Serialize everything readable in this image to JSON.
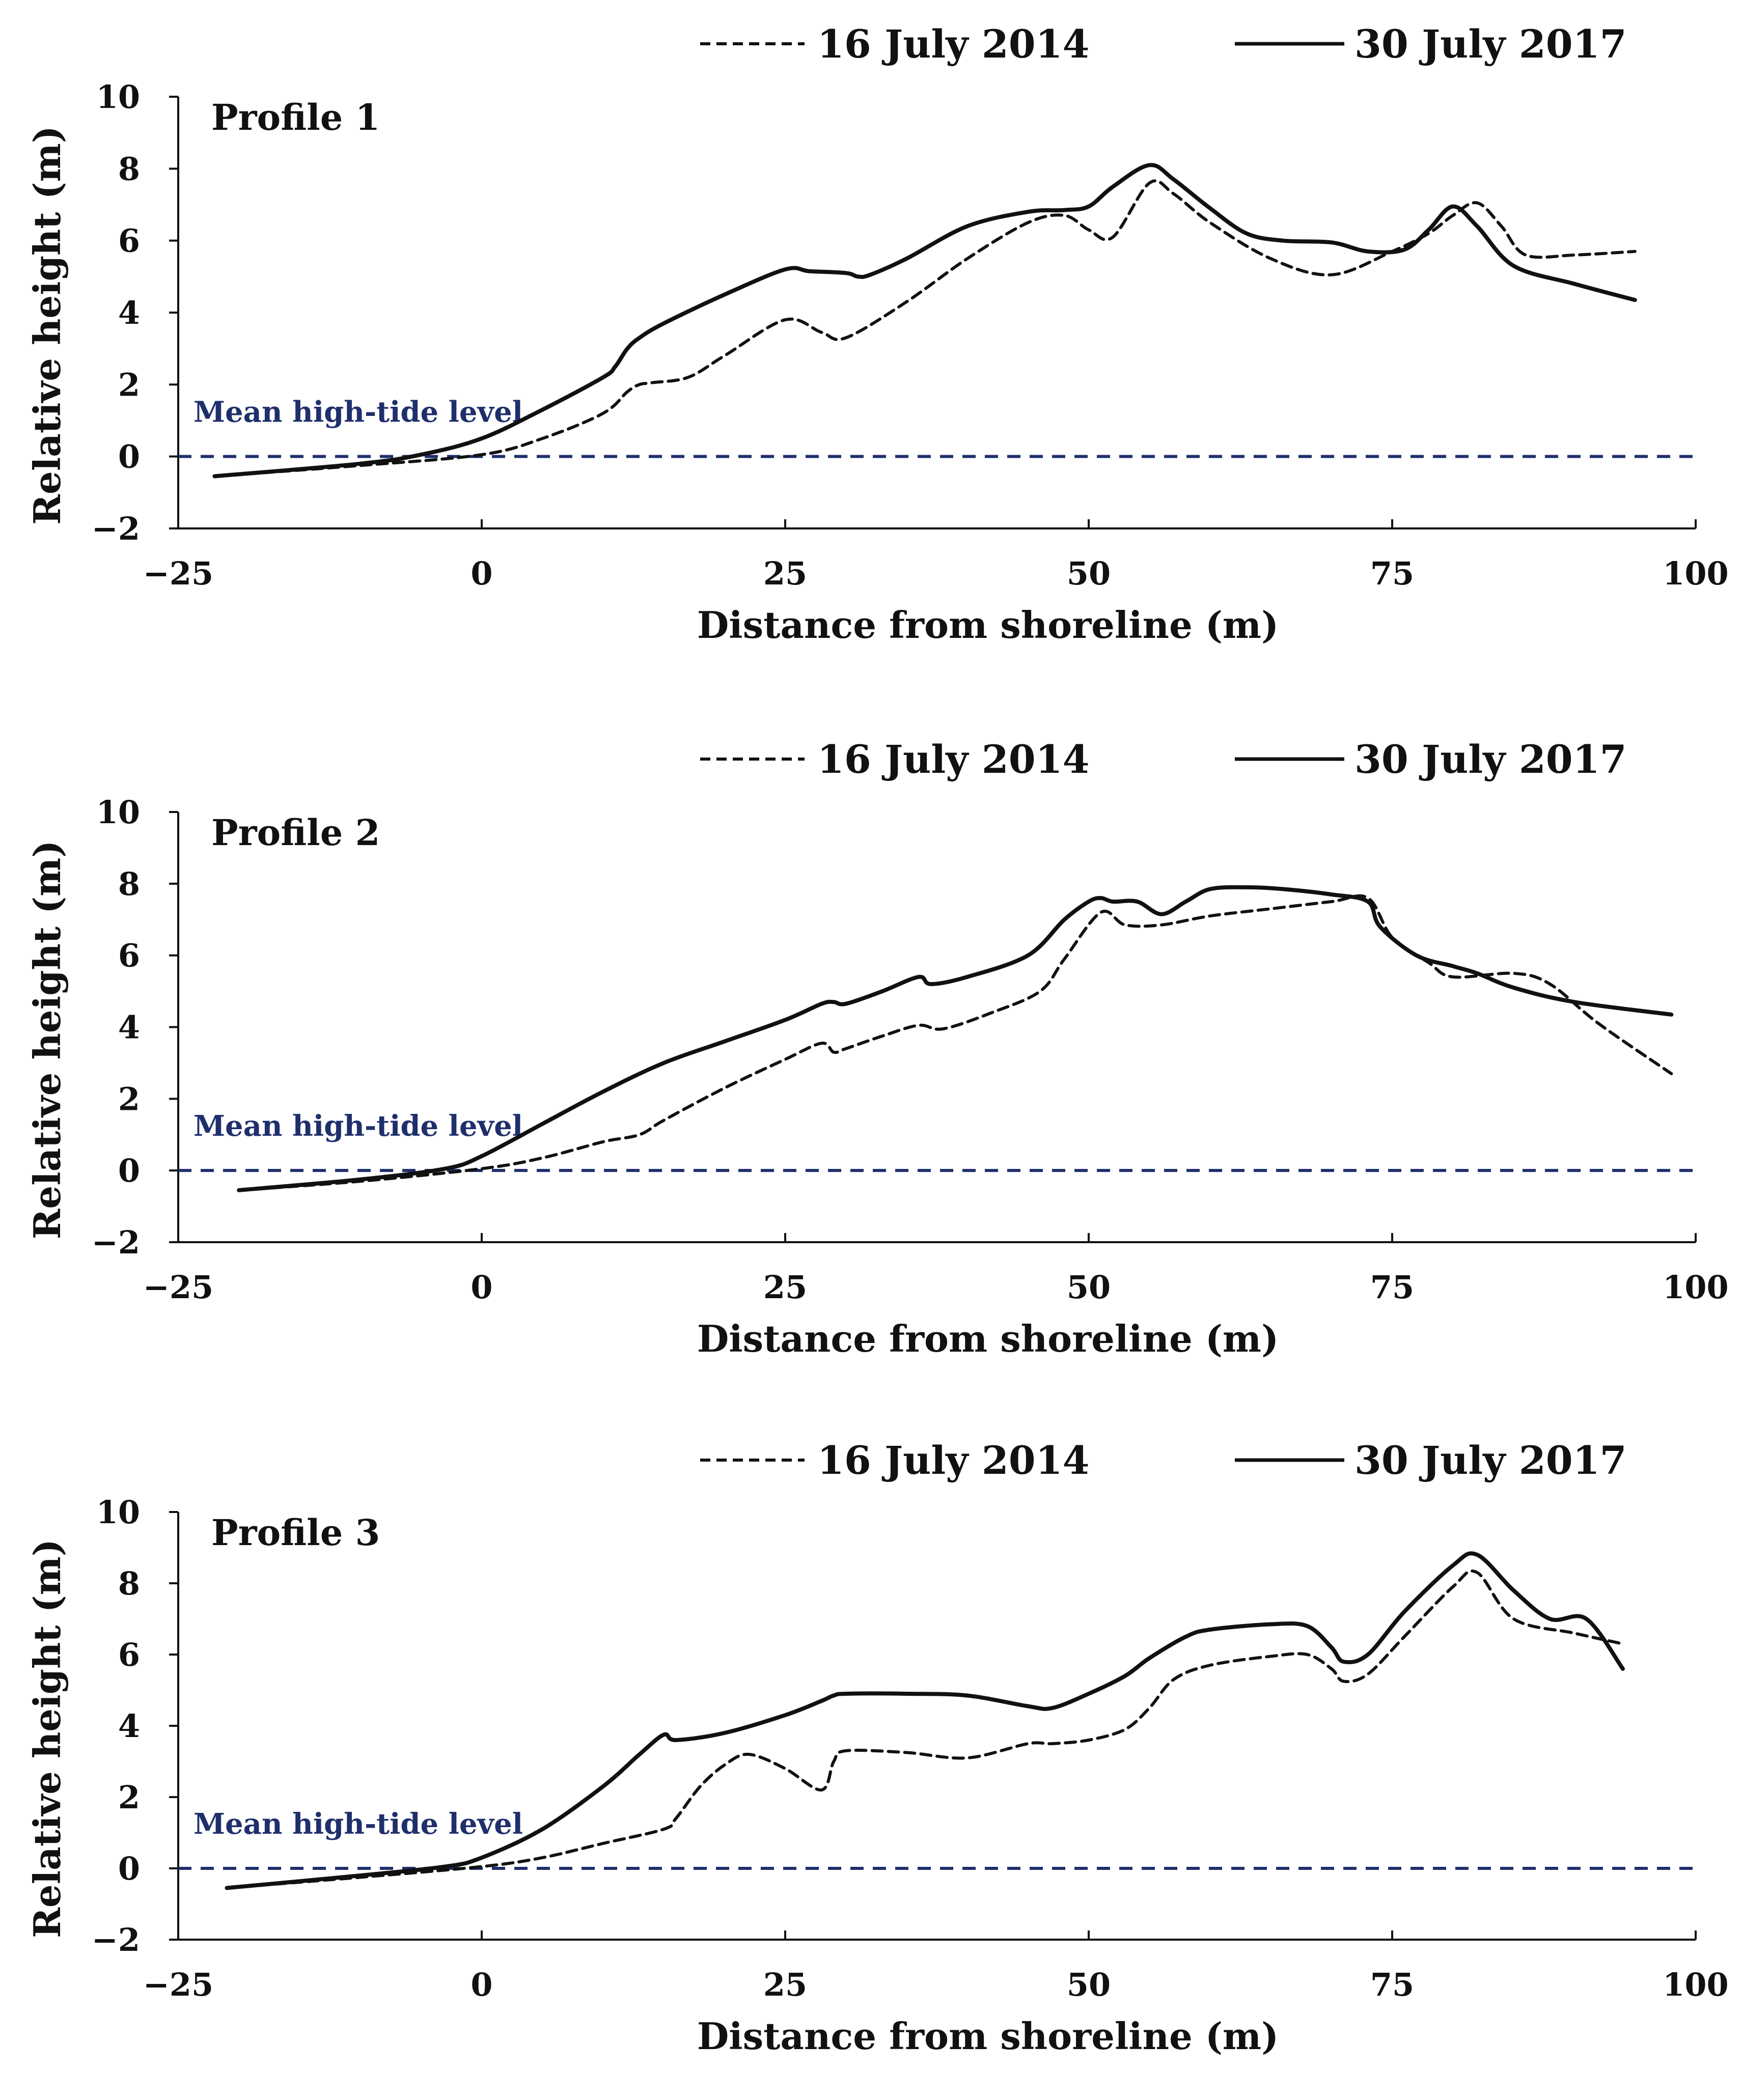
{
  "colors": {
    "series_line": "#111111",
    "tide_line": "#1f2f6b",
    "axis": "#111111",
    "background": "#ffffff"
  },
  "chart_data": [
    {
      "type": "line",
      "panel_label": "Profile 1",
      "xlabel": "Distance from shoreline (m)",
      "ylabel": "Relative height (m)",
      "xlim": [
        -25,
        100
      ],
      "ylim": [
        -2,
        10
      ],
      "xticks": [
        -25,
        0,
        25,
        50,
        75,
        100
      ],
      "yticks": [
        -2,
        0,
        2,
        4,
        6,
        8,
        10
      ],
      "xtick_labels": [
        "−25",
        "0",
        "25",
        "50",
        "75",
        "100"
      ],
      "ytick_labels": [
        "−2",
        "0",
        "2",
        "4",
        "6",
        "8",
        "10"
      ],
      "reference_line": {
        "label": "Mean high-tide level",
        "y": 0
      },
      "series": [
        {
          "name": "16 July 2014",
          "style": "dashed",
          "x": [
            -22,
            -10,
            0,
            5,
            10,
            12,
            13,
            14,
            17,
            20,
            25,
            28,
            30,
            35,
            40,
            45,
            48,
            50,
            52,
            55,
            57,
            60,
            65,
            70,
            75,
            78,
            80,
            82,
            84,
            86,
            90,
            95
          ],
          "y": [
            -0.55,
            -0.25,
            0.05,
            0.5,
            1.2,
            1.8,
            2.0,
            2.05,
            2.2,
            2.8,
            3.8,
            3.45,
            3.3,
            4.3,
            5.5,
            6.5,
            6.7,
            6.3,
            6.1,
            7.6,
            7.3,
            6.5,
            5.5,
            5.05,
            5.7,
            6.2,
            6.7,
            7.05,
            6.4,
            5.6,
            5.6,
            5.7
          ]
        },
        {
          "name": "30 July 2017",
          "style": "solid",
          "x": [
            -22,
            -10,
            -5,
            0,
            5,
            10,
            11,
            12,
            13,
            15,
            20,
            25,
            27,
            30,
            31,
            32,
            35,
            40,
            45,
            48,
            50,
            52,
            55,
            57,
            60,
            63,
            66,
            70,
            73,
            76,
            78,
            80,
            82,
            85,
            90,
            95
          ],
          "y": [
            -0.55,
            -0.2,
            0.05,
            0.5,
            1.3,
            2.2,
            2.5,
            3.0,
            3.3,
            3.7,
            4.5,
            5.2,
            5.15,
            5.1,
            5.0,
            5.05,
            5.5,
            6.4,
            6.8,
            6.85,
            6.95,
            7.5,
            8.1,
            7.7,
            6.9,
            6.2,
            6.0,
            5.95,
            5.7,
            5.75,
            6.3,
            6.95,
            6.4,
            5.3,
            4.8,
            4.35
          ]
        }
      ]
    },
    {
      "type": "line",
      "panel_label": "Profile 2",
      "xlabel": "Distance from shoreline (m)",
      "ylabel": "Relative height (m)",
      "xlim": [
        -25,
        100
      ],
      "ylim": [
        -2,
        10
      ],
      "xticks": [
        -25,
        0,
        25,
        50,
        75,
        100
      ],
      "yticks": [
        -2,
        0,
        2,
        4,
        6,
        8,
        10
      ],
      "xtick_labels": [
        "−25",
        "0",
        "25",
        "50",
        "75",
        "100"
      ],
      "ytick_labels": [
        "−2",
        "0",
        "2",
        "4",
        "6",
        "8",
        "10"
      ],
      "reference_line": {
        "label": "Mean high-tide level",
        "y": 0
      },
      "series": [
        {
          "name": "16 July 2014",
          "style": "dashed",
          "x": [
            -20,
            -10,
            0,
            5,
            10,
            13,
            15,
            20,
            25,
            28,
            29,
            30,
            33,
            36,
            38,
            42,
            46,
            48,
            51,
            53,
            56,
            60,
            65,
            70,
            73,
            75,
            78,
            80,
            85,
            88,
            92,
            98
          ],
          "y": [
            -0.55,
            -0.3,
            0.05,
            0.35,
            0.8,
            1.0,
            1.4,
            2.3,
            3.1,
            3.55,
            3.3,
            3.4,
            3.75,
            4.05,
            3.95,
            4.4,
            5.0,
            5.9,
            7.2,
            6.85,
            6.85,
            7.1,
            7.3,
            7.5,
            7.6,
            6.5,
            5.8,
            5.4,
            5.5,
            5.2,
            4.1,
            2.7
          ]
        },
        {
          "name": "30 July 2017",
          "style": "solid",
          "x": [
            -20,
            -10,
            -3,
            0,
            5,
            10,
            15,
            20,
            25,
            28,
            29,
            30,
            33,
            36,
            37,
            40,
            45,
            48,
            50,
            51,
            52,
            54,
            56,
            58,
            60,
            63,
            66,
            70,
            73,
            74,
            77,
            80,
            82,
            85,
            90,
            98
          ],
          "y": [
            -0.55,
            -0.25,
            0.05,
            0.4,
            1.3,
            2.2,
            3.0,
            3.6,
            4.2,
            4.65,
            4.7,
            4.65,
            5.0,
            5.4,
            5.2,
            5.4,
            6.0,
            7.0,
            7.5,
            7.6,
            7.5,
            7.5,
            7.15,
            7.5,
            7.85,
            7.9,
            7.85,
            7.7,
            7.5,
            6.8,
            6.0,
            5.7,
            5.5,
            5.1,
            4.7,
            4.35
          ]
        }
      ]
    },
    {
      "type": "line",
      "panel_label": "Profile 3",
      "xlabel": "Distance from shoreline (m)",
      "ylabel": "Relative height (m)",
      "xlim": [
        -25,
        100
      ],
      "ylim": [
        -2,
        10
      ],
      "xticks": [
        -25,
        0,
        25,
        50,
        75,
        100
      ],
      "yticks": [
        -2,
        0,
        2,
        4,
        6,
        8,
        10
      ],
      "xtick_labels": [
        "−25",
        "0",
        "25",
        "50",
        "75",
        "100"
      ],
      "ytick_labels": [
        "−2",
        "0",
        "2",
        "4",
        "6",
        "8",
        "10"
      ],
      "reference_line": {
        "label": "Mean high-tide level",
        "y": 0
      },
      "series": [
        {
          "name": "16 July 2014",
          "style": "dashed",
          "x": [
            -21,
            -10,
            0,
            5,
            10,
            15,
            16,
            18,
            20,
            22,
            25,
            28,
            29,
            30,
            35,
            40,
            45,
            47,
            50,
            53,
            55,
            57,
            60,
            65,
            68,
            70,
            71,
            73,
            76,
            80,
            82,
            85,
            90,
            94
          ],
          "y": [
            -0.55,
            -0.25,
            0.05,
            0.3,
            0.7,
            1.1,
            1.4,
            2.3,
            2.9,
            3.2,
            2.8,
            2.2,
            3.0,
            3.3,
            3.25,
            3.1,
            3.5,
            3.5,
            3.6,
            3.9,
            4.5,
            5.3,
            5.7,
            5.95,
            6.0,
            5.6,
            5.25,
            5.45,
            6.5,
            7.9,
            8.3,
            7.0,
            6.6,
            6.3
          ]
        },
        {
          "name": "30 July 2017",
          "style": "solid",
          "x": [
            -21,
            -10,
            -3,
            0,
            5,
            10,
            13,
            15,
            16,
            20,
            25,
            28,
            29,
            30,
            35,
            40,
            45,
            47,
            50,
            53,
            55,
            58,
            60,
            65,
            68,
            70,
            71,
            73,
            76,
            80,
            82,
            85,
            88,
            91,
            94
          ],
          "y": [
            -0.55,
            -0.2,
            0.05,
            0.3,
            1.1,
            2.3,
            3.2,
            3.75,
            3.6,
            3.8,
            4.3,
            4.7,
            4.85,
            4.9,
            4.9,
            4.85,
            4.55,
            4.5,
            4.9,
            5.4,
            5.9,
            6.5,
            6.7,
            6.85,
            6.8,
            6.2,
            5.8,
            6.0,
            7.2,
            8.5,
            8.8,
            7.8,
            7.0,
            7.0,
            5.6
          ]
        }
      ]
    }
  ]
}
